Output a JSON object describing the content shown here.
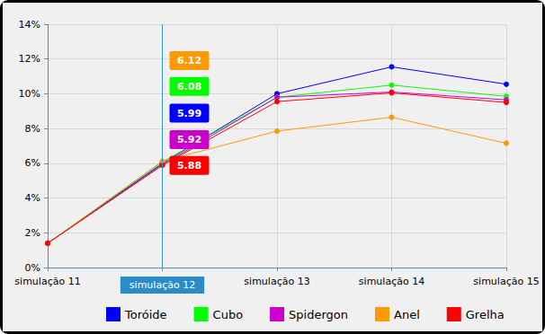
{
  "chart_data": {
    "type": "line",
    "categories": [
      "simulação 11",
      "simulação 12",
      "simulação 13",
      "simulação 14",
      "simulação 15"
    ],
    "series": [
      {
        "name": "Toróide",
        "color": "#0000ff",
        "values": [
          1.4,
          5.99,
          10.0,
          11.55,
          10.55
        ],
        "value_labels": [
          null,
          "5.99",
          null,
          null,
          null
        ]
      },
      {
        "name": "Cubo",
        "color": "#00ff00",
        "values": [
          1.4,
          6.08,
          9.8,
          10.5,
          9.85
        ],
        "value_labels": [
          null,
          "6.08",
          null,
          null,
          null
        ]
      },
      {
        "name": "Spidergon",
        "color": "#cc00cc",
        "values": [
          1.4,
          5.92,
          9.8,
          10.1,
          9.65
        ],
        "value_labels": [
          null,
          "5.92",
          null,
          null,
          null
        ]
      },
      {
        "name": "Anel",
        "color": "#ff9900",
        "values": [
          1.4,
          6.12,
          7.85,
          8.65,
          7.15
        ],
        "value_labels": [
          null,
          "6.12",
          null,
          null,
          null
        ]
      },
      {
        "name": "Grelha",
        "color": "#ff0000",
        "values": [
          1.4,
          5.88,
          9.55,
          10.05,
          9.5
        ],
        "value_labels": [
          null,
          "5.88",
          null,
          null,
          null
        ]
      }
    ],
    "ylim": [
      0,
      14
    ],
    "yticks": [
      {
        "value": 0,
        "label": "0%"
      },
      {
        "value": 2,
        "label": "2%"
      },
      {
        "value": 4,
        "label": "4%"
      },
      {
        "value": 6,
        "label": "6%"
      },
      {
        "value": 8,
        "label": "8%"
      },
      {
        "value": 10,
        "label": "10%"
      },
      {
        "value": 12,
        "label": "12%"
      },
      {
        "value": 14,
        "label": "14%"
      }
    ],
    "grid": true,
    "legend": "bottom",
    "marker": "circle"
  }
}
